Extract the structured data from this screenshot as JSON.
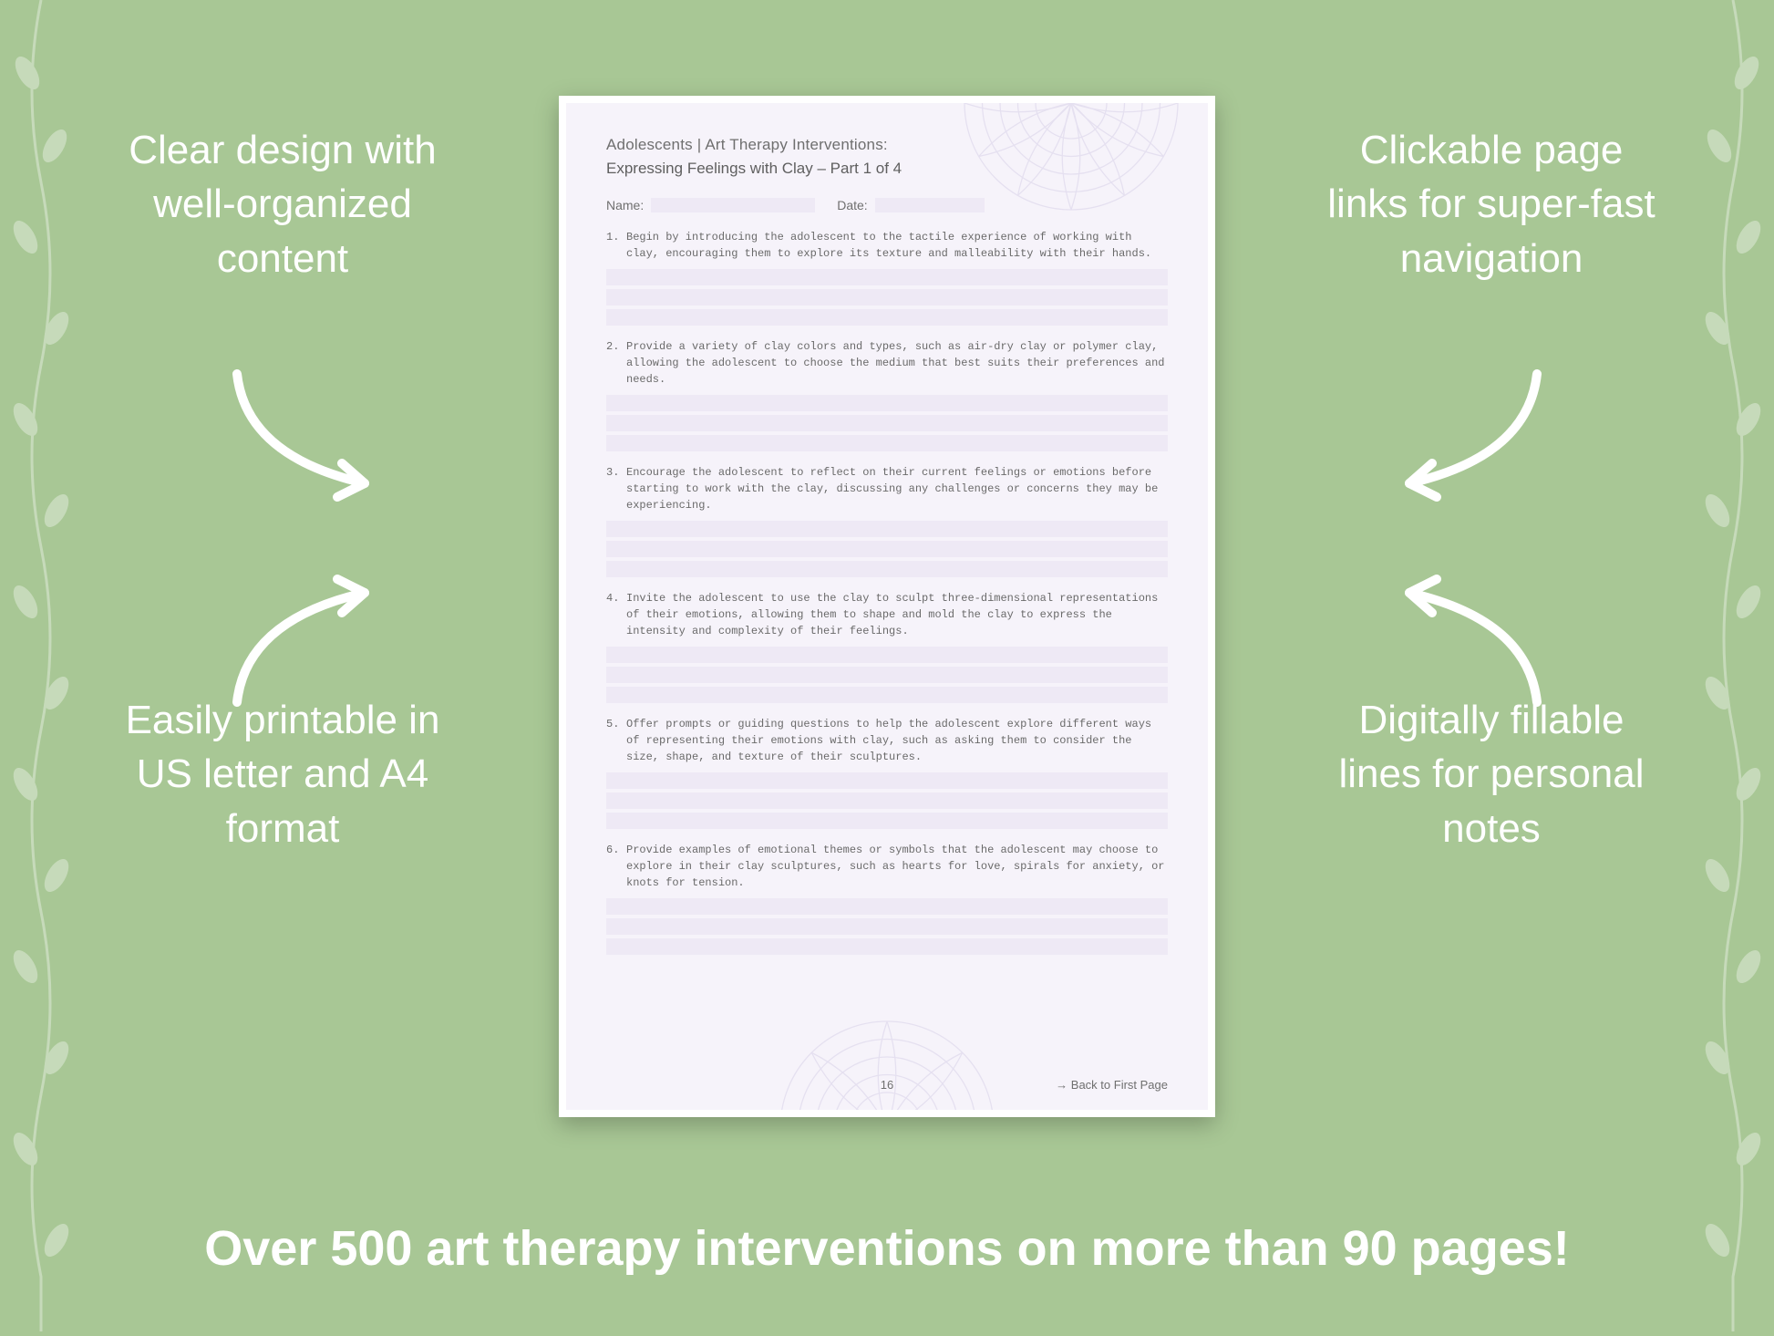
{
  "colors": {
    "background": "#a8c795",
    "page_bg": "#f6f3fa",
    "page_border": "#ffffff",
    "callout_text": "#ffffff",
    "page_text": "#6f6f6f",
    "line_fill": "#eee9f5",
    "arrow": "#ffffff"
  },
  "callouts": {
    "tl": "Clear design with well-organized content",
    "tr": "Clickable page links for super-fast navigation",
    "bl": "Easily printable in US letter and A4 format",
    "br": "Digitally fillable lines for personal notes"
  },
  "banner": "Over 500 art therapy interventions on more than 90 pages!",
  "page": {
    "header": "Adolescents | Art Therapy Interventions:",
    "subtitle": "Expressing Feelings with Clay – Part 1 of 4",
    "name_label": "Name:",
    "date_label": "Date:",
    "items": [
      "Begin by introducing the adolescent to the tactile experience of working with clay, encouraging them to explore its texture and malleability with their hands.",
      "Provide a variety of clay colors and types, such as air-dry clay or polymer clay, allowing the adolescent to choose the medium that best suits their preferences and needs.",
      "Encourage the adolescent to reflect on their current feelings or emotions before starting to work with the clay, discussing any challenges or concerns they may be experiencing.",
      "Invite the adolescent to use the clay to sculpt three-dimensional representations of their emotions, allowing them to shape and mold the clay to express the intensity and complexity of their feelings.",
      "Offer prompts or guiding questions to help the adolescent explore different ways of representing their emotions with clay, such as asking them to consider the size, shape, and texture of their sculptures.",
      "Provide examples of emotional themes or symbols that the adolescent may choose to explore in their clay sculptures, such as hearts for love, spirals for anxiety, or knots for tension."
    ],
    "page_number": "16",
    "back_link": "→ Back to First Page",
    "fill_lines_per_item": 3
  }
}
